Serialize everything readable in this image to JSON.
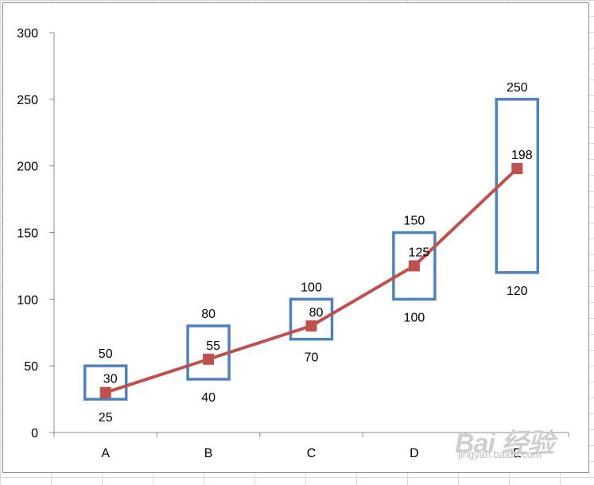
{
  "chart_data": {
    "type": "line",
    "title": "",
    "xlabel": "",
    "ylabel": "",
    "ylim": [
      0,
      300
    ],
    "yticks": [
      "0",
      "50",
      "100",
      "150",
      "200",
      "250",
      "300"
    ],
    "categories": [
      "A",
      "B",
      "C",
      "D",
      "E"
    ],
    "series": [
      {
        "values": [
          30,
          55,
          80,
          125,
          198
        ],
        "labels": [
          "30",
          "55",
          "80",
          "125",
          "198"
        ],
        "color": "#c0504d",
        "marker": "square"
      }
    ],
    "ranges": {
      "high": [
        50,
        80,
        100,
        150,
        250
      ],
      "low": [
        25,
        40,
        70,
        100,
        120
      ],
      "high_labels": [
        "50",
        "80",
        "100",
        "150",
        "250"
      ],
      "low_labels": [
        "25",
        "40",
        "70",
        "100",
        "120"
      ],
      "color": "#4f81bd"
    },
    "grid": false,
    "legend": "none"
  },
  "watermark": {
    "brand": "Bai 经验",
    "url": "jingyan.baidu.com"
  }
}
